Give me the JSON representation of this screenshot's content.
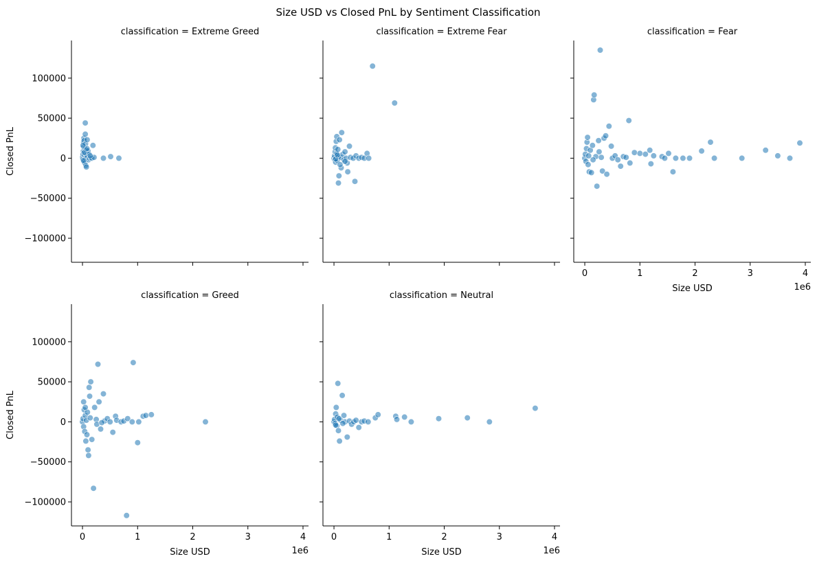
{
  "figure": {
    "title": "Size USD vs Closed PnL by Sentiment Classification",
    "marker_color": "#1f77b4",
    "marker_alpha": 0.55
  },
  "chart_data": {
    "type": "scatter",
    "facet_layout": "3 columns x 2 rows, shared axes",
    "shared_axes": {
      "xlabel": "Size USD",
      "ylabel": "Closed PnL",
      "x_offset_label": "1e6",
      "xlim": [
        -0.2,
        4.1
      ],
      "ylim": [
        -130000,
        147000
      ],
      "x_ticks": [
        0,
        1,
        2,
        3,
        4
      ],
      "x_tick_labels": [
        "0",
        "1",
        "2",
        "3",
        "4"
      ],
      "y_ticks": [
        -100000,
        -50000,
        0,
        50000,
        100000
      ],
      "y_tick_labels": [
        "−100000",
        "−50000",
        "0",
        "50000",
        "100000"
      ],
      "grid": false,
      "x_units": "USD (×1e6)"
    },
    "facets": [
      {
        "title": "classification = Extreme Greed",
        "points": [
          [
            0.0,
            0
          ],
          [
            0.005,
            2000
          ],
          [
            0.01,
            -1500
          ],
          [
            0.01,
            5000
          ],
          [
            0.015,
            9000
          ],
          [
            0.02,
            14000
          ],
          [
            0.02,
            20000
          ],
          [
            0.025,
            25000
          ],
          [
            0.03,
            22000
          ],
          [
            0.03,
            -4000
          ],
          [
            0.035,
            3000
          ],
          [
            0.04,
            8000
          ],
          [
            0.04,
            -6000
          ],
          [
            0.045,
            12000
          ],
          [
            0.05,
            0
          ],
          [
            0.05,
            30000
          ],
          [
            0.05,
            44000
          ],
          [
            0.055,
            18000
          ],
          [
            0.06,
            6000
          ],
          [
            0.06,
            -9000
          ],
          [
            0.065,
            2000
          ],
          [
            0.07,
            10000
          ],
          [
            0.07,
            -11000
          ],
          [
            0.08,
            4000
          ],
          [
            0.085,
            23000
          ],
          [
            0.09,
            1000
          ],
          [
            0.1,
            9000
          ],
          [
            0.11,
            -2000
          ],
          [
            0.12,
            5000
          ],
          [
            0.13,
            0
          ],
          [
            0.15,
            1000
          ],
          [
            0.17,
            0
          ],
          [
            0.19,
            16000
          ],
          [
            0.21,
            1000
          ],
          [
            0.38,
            0
          ],
          [
            0.51,
            2000
          ],
          [
            0.66,
            0
          ],
          [
            0.02,
            -3000
          ],
          [
            0.03,
            7000
          ],
          [
            0.08,
            12000
          ],
          [
            0.14,
            3000
          ],
          [
            0.01,
            16000
          ]
        ]
      },
      {
        "title": "classification = Extreme Fear",
        "points": [
          [
            0.0,
            0
          ],
          [
            0.01,
            3000
          ],
          [
            0.015,
            -2000
          ],
          [
            0.02,
            8000
          ],
          [
            0.025,
            13000
          ],
          [
            0.03,
            -5000
          ],
          [
            0.04,
            21000
          ],
          [
            0.05,
            27000
          ],
          [
            0.05,
            6000
          ],
          [
            0.06,
            -3000
          ],
          [
            0.07,
            11000
          ],
          [
            0.08,
            2000
          ],
          [
            0.08,
            -31000
          ],
          [
            0.09,
            -22000
          ],
          [
            0.1,
            23000
          ],
          [
            0.12,
            1000
          ],
          [
            0.13,
            -12000
          ],
          [
            0.14,
            32000
          ],
          [
            0.16,
            5000
          ],
          [
            0.18,
            -2000
          ],
          [
            0.2,
            8000
          ],
          [
            0.22,
            0
          ],
          [
            0.24,
            -6000
          ],
          [
            0.25,
            -17000
          ],
          [
            0.28,
            15000
          ],
          [
            0.3,
            1000
          ],
          [
            0.35,
            0
          ],
          [
            0.38,
            -29000
          ],
          [
            0.4,
            3000
          ],
          [
            0.45,
            0
          ],
          [
            0.5,
            1000
          ],
          [
            0.55,
            0
          ],
          [
            0.6,
            6000
          ],
          [
            0.63,
            0
          ],
          [
            0.7,
            115000
          ],
          [
            1.1,
            69000
          ],
          [
            0.03,
            -1000
          ],
          [
            0.06,
            4000
          ],
          [
            0.11,
            -8000
          ],
          [
            0.2,
            -4000
          ]
        ]
      },
      {
        "title": "classification = Fear",
        "points": [
          [
            0.0,
            0
          ],
          [
            0.01,
            5000
          ],
          [
            0.02,
            -4000
          ],
          [
            0.03,
            12000
          ],
          [
            0.04,
            20000
          ],
          [
            0.05,
            26000
          ],
          [
            0.06,
            -8000
          ],
          [
            0.07,
            3000
          ],
          [
            0.08,
            -17000
          ],
          [
            0.1,
            10000
          ],
          [
            0.12,
            -18000
          ],
          [
            0.14,
            16000
          ],
          [
            0.16,
            73000
          ],
          [
            0.17,
            79000
          ],
          [
            0.2,
            2000
          ],
          [
            0.22,
            -35000
          ],
          [
            0.25,
            22000
          ],
          [
            0.28,
            135000
          ],
          [
            0.3,
            1000
          ],
          [
            0.32,
            -16000
          ],
          [
            0.35,
            25000
          ],
          [
            0.38,
            28000
          ],
          [
            0.4,
            -20000
          ],
          [
            0.44,
            40000
          ],
          [
            0.48,
            15000
          ],
          [
            0.5,
            0
          ],
          [
            0.55,
            3000
          ],
          [
            0.6,
            -2000
          ],
          [
            0.65,
            -10000
          ],
          [
            0.7,
            2000
          ],
          [
            0.75,
            1000
          ],
          [
            0.8,
            47000
          ],
          [
            0.82,
            -6000
          ],
          [
            0.9,
            7000
          ],
          [
            1.0,
            6000
          ],
          [
            1.1,
            5000
          ],
          [
            1.18,
            10000
          ],
          [
            1.2,
            -7000
          ],
          [
            1.25,
            3000
          ],
          [
            1.4,
            2000
          ],
          [
            1.45,
            0
          ],
          [
            1.52,
            6000
          ],
          [
            1.6,
            -17000
          ],
          [
            1.65,
            0
          ],
          [
            1.78,
            0
          ],
          [
            1.9,
            0
          ],
          [
            2.12,
            9000
          ],
          [
            2.28,
            20000
          ],
          [
            2.35,
            0
          ],
          [
            2.85,
            0
          ],
          [
            3.28,
            10000
          ],
          [
            3.5,
            3000
          ],
          [
            3.72,
            0
          ],
          [
            3.9,
            19000
          ],
          [
            0.15,
            -2000
          ],
          [
            0.26,
            8000
          ]
        ]
      },
      {
        "title": "classification = Greed",
        "points": [
          [
            0.0,
            0
          ],
          [
            0.01,
            4000
          ],
          [
            0.02,
            -6000
          ],
          [
            0.02,
            25000
          ],
          [
            0.03,
            15000
          ],
          [
            0.04,
            -12000
          ],
          [
            0.05,
            8000
          ],
          [
            0.06,
            -24000
          ],
          [
            0.07,
            2000
          ],
          [
            0.08,
            -16000
          ],
          [
            0.09,
            12000
          ],
          [
            0.1,
            -35000
          ],
          [
            0.11,
            -42000
          ],
          [
            0.12,
            43000
          ],
          [
            0.13,
            32000
          ],
          [
            0.15,
            50000
          ],
          [
            0.17,
            -22000
          ],
          [
            0.2,
            -83000
          ],
          [
            0.22,
            18000
          ],
          [
            0.25,
            3000
          ],
          [
            0.28,
            72000
          ],
          [
            0.3,
            25000
          ],
          [
            0.33,
            -9000
          ],
          [
            0.38,
            35000
          ],
          [
            0.4,
            1000
          ],
          [
            0.45,
            4000
          ],
          [
            0.5,
            0
          ],
          [
            0.55,
            -13000
          ],
          [
            0.6,
            7000
          ],
          [
            0.62,
            2000
          ],
          [
            0.7,
            0
          ],
          [
            0.75,
            1000
          ],
          [
            0.8,
            -117000
          ],
          [
            0.82,
            4000
          ],
          [
            0.9,
            0
          ],
          [
            0.92,
            74000
          ],
          [
            1.0,
            -26000
          ],
          [
            1.02,
            0
          ],
          [
            1.1,
            7000
          ],
          [
            1.15,
            8000
          ],
          [
            1.25,
            9000
          ],
          [
            2.23,
            0
          ],
          [
            0.05,
            18000
          ],
          [
            0.14,
            5000
          ],
          [
            0.26,
            -3000
          ],
          [
            0.35,
            -1000
          ]
        ]
      },
      {
        "title": "classification = Neutral",
        "points": [
          [
            0.0,
            0
          ],
          [
            0.01,
            3000
          ],
          [
            0.02,
            -2000
          ],
          [
            0.03,
            10000
          ],
          [
            0.04,
            18000
          ],
          [
            0.05,
            -5000
          ],
          [
            0.06,
            6000
          ],
          [
            0.07,
            48000
          ],
          [
            0.08,
            -11000
          ],
          [
            0.1,
            -24000
          ],
          [
            0.12,
            2000
          ],
          [
            0.15,
            33000
          ],
          [
            0.18,
            8000
          ],
          [
            0.2,
            0
          ],
          [
            0.24,
            -19000
          ],
          [
            0.28,
            1000
          ],
          [
            0.32,
            -3000
          ],
          [
            0.36,
            0
          ],
          [
            0.4,
            2000
          ],
          [
            0.45,
            -7000
          ],
          [
            0.5,
            0
          ],
          [
            0.55,
            1000
          ],
          [
            0.62,
            0
          ],
          [
            0.75,
            5000
          ],
          [
            0.8,
            9000
          ],
          [
            1.12,
            7000
          ],
          [
            1.14,
            3000
          ],
          [
            1.28,
            6000
          ],
          [
            1.4,
            0
          ],
          [
            1.9,
            4000
          ],
          [
            2.42,
            5000
          ],
          [
            2.82,
            0
          ],
          [
            3.65,
            17000
          ],
          [
            0.03,
            -4000
          ],
          [
            0.09,
            4000
          ],
          [
            0.16,
            -2000
          ]
        ]
      }
    ]
  }
}
